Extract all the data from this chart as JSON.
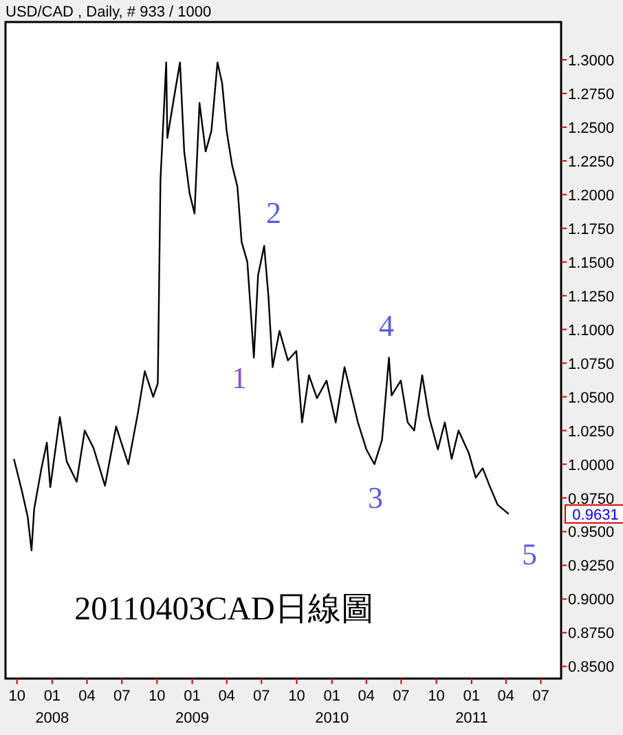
{
  "chart_data": {
    "type": "line",
    "title": "USD/CAD , Daily, # 933 / 1000",
    "x": [
      "2007-09-23",
      "2007-10-14",
      "2007-10-29",
      "2007-11-08",
      "2007-11-15",
      "2007-12-04",
      "2007-12-18",
      "2007-12-27",
      "2008-01-21",
      "2008-02-08",
      "2008-03-05",
      "2008-03-26",
      "2008-04-18",
      "2008-05-18",
      "2008-06-16",
      "2008-07-18",
      "2008-08-12",
      "2008-08-30",
      "2008-09-21",
      "2008-10-03",
      "2008-10-10",
      "2008-10-25",
      "2008-10-28",
      "2008-11-15",
      "2008-11-30",
      "2008-12-11",
      "2008-12-25",
      "2009-01-07",
      "2009-01-20",
      "2009-02-05",
      "2009-02-20",
      "2009-03-08",
      "2009-03-20",
      "2009-04-01",
      "2009-04-15",
      "2009-04-29",
      "2009-05-10",
      "2009-05-25",
      "2009-06-04",
      "2009-06-11",
      "2009-06-22",
      "2009-07-08",
      "2009-07-19",
      "2009-07-30",
      "2009-08-17",
      "2009-09-08",
      "2009-09-30",
      "2009-10-15",
      "2009-11-02",
      "2009-11-23",
      "2009-12-18",
      "2010-01-11",
      "2010-02-03",
      "2010-03-10",
      "2010-04-01",
      "2010-04-22",
      "2010-05-12",
      "2010-05-30",
      "2010-06-06",
      "2010-06-30",
      "2010-07-18",
      "2010-08-04",
      "2010-08-25",
      "2010-09-12",
      "2010-10-05",
      "2010-10-23",
      "2010-11-10",
      "2010-11-28",
      "2010-12-25",
      "2011-01-12",
      "2011-01-30",
      "2011-02-17",
      "2011-03-10",
      "2011-04-08"
    ],
    "series": [
      {
        "color": "#000000",
        "values": [
          1.004,
          0.98,
          0.961,
          0.936,
          0.967,
          0.997,
          1.016,
          0.983,
          1.035,
          1.002,
          0.987,
          1.025,
          1.012,
          0.984,
          1.028,
          1.0,
          1.038,
          1.069,
          1.05,
          1.06,
          1.211,
          1.298,
          1.242,
          1.273,
          1.298,
          1.232,
          1.201,
          1.186,
          1.268,
          1.232,
          1.247,
          1.298,
          1.283,
          1.247,
          1.222,
          1.206,
          1.165,
          1.15,
          1.109,
          1.079,
          1.14,
          1.162,
          1.125,
          1.072,
          1.099,
          1.077,
          1.084,
          1.031,
          1.066,
          1.049,
          1.062,
          1.031,
          1.072,
          1.031,
          1.011,
          1.0,
          1.018,
          1.079,
          1.051,
          1.062,
          1.031,
          1.025,
          1.066,
          1.035,
          1.011,
          1.031,
          1.004,
          1.025,
          1.008,
          0.99,
          0.997,
          0.984,
          0.97,
          0.9631
        ]
      }
    ],
    "xlim": [
      "2007-09-01",
      "2011-08-23"
    ],
    "xticks": [
      {
        "value": "2007-10-01",
        "label": "10"
      },
      {
        "value": "2008-01-01",
        "label": "01\n2008"
      },
      {
        "value": "2008-04-01",
        "label": "04"
      },
      {
        "value": "2008-07-01",
        "label": "07"
      },
      {
        "value": "2008-10-01",
        "label": "10"
      },
      {
        "value": "2009-01-01",
        "label": "01\n2009"
      },
      {
        "value": "2009-04-01",
        "label": "04"
      },
      {
        "value": "2009-07-01",
        "label": "07"
      },
      {
        "value": "2009-10-01",
        "label": "10"
      },
      {
        "value": "2010-01-01",
        "label": "01\n2010"
      },
      {
        "value": "2010-04-01",
        "label": "04"
      },
      {
        "value": "2010-07-01",
        "label": "07"
      },
      {
        "value": "2010-10-01",
        "label": "10"
      },
      {
        "value": "2011-01-01",
        "label": "01\n2011"
      },
      {
        "value": "2011-04-01",
        "label": "04"
      },
      {
        "value": "2011-07-01",
        "label": "07"
      }
    ],
    "ylim": [
      0.841,
      1.328
    ],
    "yticks": [
      {
        "value": 0.85,
        "label": "0.8500"
      },
      {
        "value": 0.875,
        "label": "0.8750"
      },
      {
        "value": 0.9,
        "label": "0.9000"
      },
      {
        "value": 0.925,
        "label": "0.9250"
      },
      {
        "value": 0.95,
        "label": "0.9500"
      },
      {
        "value": 0.9631,
        "label": "0.9631"
      },
      {
        "value": 0.975,
        "label": "0.9750"
      },
      {
        "value": 1.0,
        "label": "1.0000"
      },
      {
        "value": 1.025,
        "label": "1.0250"
      },
      {
        "value": 1.05,
        "label": "1.0500"
      },
      {
        "value": 1.075,
        "label": "1.0750"
      },
      {
        "value": 1.1,
        "label": "1.1000"
      },
      {
        "value": 1.125,
        "label": "1.1250"
      },
      {
        "value": 1.15,
        "label": "1.1500"
      },
      {
        "value": 1.175,
        "label": "1.1750"
      },
      {
        "value": 1.2,
        "label": "1.2000"
      },
      {
        "value": 1.225,
        "label": "1.2250"
      },
      {
        "value": 1.25,
        "label": "1.2500"
      },
      {
        "value": 1.275,
        "label": "1.2750"
      },
      {
        "value": 1.3,
        "label": "1.3000"
      }
    ],
    "annotations": [
      "1",
      "2",
      "3",
      "4",
      "5",
      "20110403CAD日線圖"
    ],
    "marker": "none",
    "line_style": "solid",
    "grid": false
  }
}
